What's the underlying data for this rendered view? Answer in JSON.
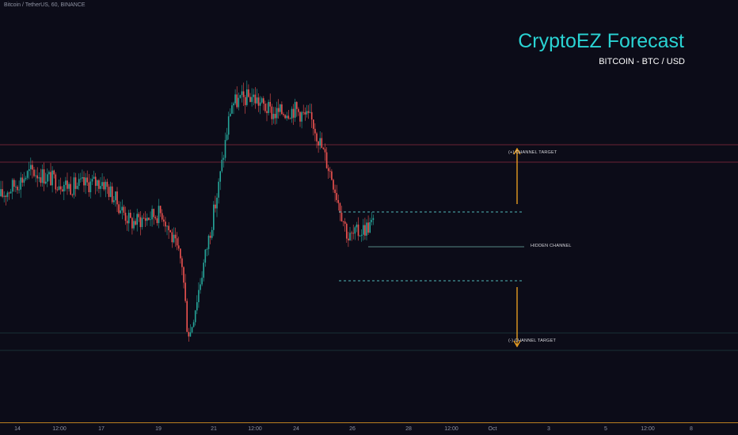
{
  "header": {
    "symbol_info": "Bitcoin / TetherUS, 60, BINANCE"
  },
  "brand": {
    "title": "CryptoEZ Forecast",
    "subtitle": "BITCOIN - BTC / USD"
  },
  "annotations": {
    "upper_target": "(+) CHANNEL TARGET",
    "hidden_channel": "HIDDEN CHANNEL",
    "lower_target": "(-) CHANNEL TARGET"
  },
  "x_axis": {
    "ticks": [
      "14",
      "12:00",
      "17",
      "19",
      "21",
      "12:00",
      "24",
      "26",
      "28",
      "12:00",
      "Oct",
      "3",
      "5",
      "12:00",
      "8"
    ]
  },
  "colors": {
    "background": "#0c0c18",
    "up_candle": "#26a69a",
    "down_candle": "#ef5350",
    "upper_zone": "#8c2a3e",
    "lower_zone": "#1e3b40",
    "dashed_channel": "#4fb7b7",
    "hidden_line": "#6fb3a8",
    "arrow": "#f5a623",
    "brand": "#2ad3d3",
    "axis_line": "#f5a623"
  },
  "chart_data": {
    "type": "candlestick",
    "title": "CryptoEZ Forecast",
    "subtitle": "BITCOIN - BTC / USD",
    "timeframe": "60",
    "exchange": "BINANCE",
    "close_path_keypoints": [
      {
        "x": "14",
        "close": 0.56
      },
      {
        "x": "15",
        "close": 0.66
      },
      {
        "x": "16",
        "close": 0.6
      },
      {
        "x": "17",
        "close": 0.62
      },
      {
        "x": "18",
        "close": 0.46
      },
      {
        "x": "19",
        "close": 0.5
      },
      {
        "x": "20",
        "close": 0.3
      },
      {
        "x": "20 12:00",
        "close": 0.0
      },
      {
        "x": "21",
        "close": 0.58
      },
      {
        "x": "21 06:00",
        "close": 0.92
      },
      {
        "x": "21 12:00",
        "close": 0.95
      },
      {
        "x": "22",
        "close": 0.88
      },
      {
        "x": "23",
        "close": 0.9
      },
      {
        "x": "24",
        "close": 0.85
      },
      {
        "x": "25",
        "close": 0.63
      },
      {
        "x": "25 12:00",
        "close": 0.4
      },
      {
        "x": "26",
        "close": 0.46
      }
    ],
    "levels": [
      {
        "name": "(+) CHANNEL TARGET",
        "kind": "zone"
      },
      {
        "name": "HIDDEN CHANNEL",
        "kind": "line"
      },
      {
        "name": "(-) CHANNEL TARGET",
        "kind": "zone"
      }
    ],
    "grid": false,
    "legend": "none"
  }
}
